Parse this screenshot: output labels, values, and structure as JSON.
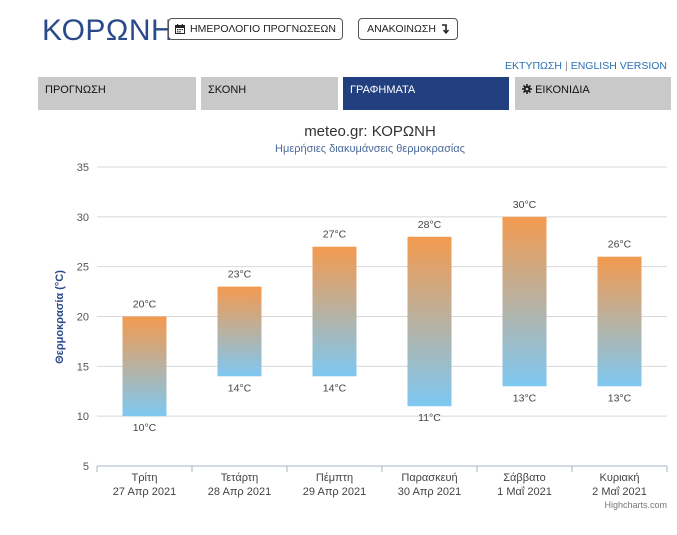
{
  "header": {
    "title": "ΚΟΡΩΝΗ"
  },
  "buttons": {
    "calendar_label": "ΗΜΕΡΟΛΟΓΙΟ ΠΡΟΓΝΩΣΕΩΝ",
    "calendar_icon": "calendar-icon",
    "announcement_label": "ΑΝΑΚΟΙΝΩΣΗ",
    "announcement_icon": "arrow-down-return-icon"
  },
  "links": {
    "print": "ΕΚΤΥΠΩΣΗ",
    "separator": "|",
    "english": "ENGLISH VERSION"
  },
  "tabs": [
    {
      "label": "ΠΡΟΓΝΩΣΗ",
      "active": false
    },
    {
      "label": "ΣΚΟΝΗ",
      "active": false
    },
    {
      "label": "ΓΡΑΦΗΜΑΤΑ",
      "active": true
    },
    {
      "label": "ΕΙΚΟΝΙΔΙΑ",
      "active": false,
      "icon": "gear-icon"
    }
  ],
  "colors": {
    "brand": "#2b4a8b",
    "active_tab": "#223f7f",
    "tab": "#c9c9c9",
    "link": "#2b6fb3",
    "bar_top": "#f39a4f",
    "bar_bottom": "#7ec8f2"
  },
  "chart_data": {
    "type": "bar",
    "title": "meteo.gr: ΚΟΡΩΝΗ",
    "subtitle": "Ημερήσιες διακυμάνσεις θερμοκρασίας",
    "ylabel": "Θερμοκρασία (°C)",
    "ylim": [
      5,
      35
    ],
    "yticks": [
      5,
      10,
      15,
      20,
      25,
      30,
      35
    ],
    "grid": true,
    "categories": [
      {
        "day": "Τρίτη",
        "date": "27 Απρ 2021"
      },
      {
        "day": "Τετάρτη",
        "date": "28 Απρ 2021"
      },
      {
        "day": "Πέμπτη",
        "date": "29 Απρ 2021"
      },
      {
        "day": "Παρασκευή",
        "date": "30 Απρ 2021"
      },
      {
        "day": "Σάββατο",
        "date": "1 Μαΐ 2021"
      },
      {
        "day": "Κυριακή",
        "date": "2 Μαΐ 2021"
      }
    ],
    "series": [
      {
        "values": [
          [
            10,
            20
          ],
          [
            14,
            23
          ],
          [
            14,
            27
          ],
          [
            11,
            28
          ],
          [
            13,
            30
          ],
          [
            13,
            26
          ]
        ]
      }
    ],
    "max_labels": [
      "20°C",
      "23°C",
      "27°C",
      "28°C",
      "30°C",
      "26°C"
    ],
    "min_labels": [
      "10°C",
      "14°C",
      "14°C",
      "11°C",
      "13°C",
      "13°C"
    ],
    "credit": "Highcharts.com"
  }
}
